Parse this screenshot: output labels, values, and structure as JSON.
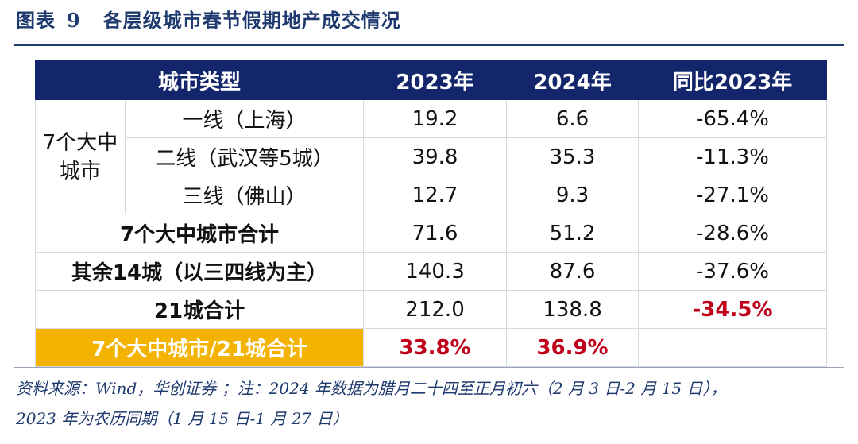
{
  "title": {
    "label": "图表",
    "number": "9",
    "text": "各层级城市春节假期地产成交情况"
  },
  "table": {
    "headers": [
      "城市类型",
      "2023年",
      "2024年",
      "同比2023年"
    ],
    "group_label": "7个大中城市",
    "group_rows": [
      {
        "name": "一线（上海）",
        "y2023": "19.2",
        "y2024": "6.6",
        "yoy": "-65.4%"
      },
      {
        "name": "二线（武汉等5城）",
        "y2023": "39.8",
        "y2024": "35.3",
        "yoy": "-11.3%"
      },
      {
        "name": "三线（佛山）",
        "y2023": "12.7",
        "y2024": "9.3",
        "yoy": "-27.1%"
      }
    ],
    "summary_rows": [
      {
        "name": "7个大中城市合计",
        "y2023": "71.6",
        "y2024": "51.2",
        "yoy": "-28.6%"
      },
      {
        "name": "其余14城（以三四线为主）",
        "y2023": "140.3",
        "y2024": "87.6",
        "yoy": "-37.6%"
      },
      {
        "name": "21城合计",
        "y2023": "212.0",
        "y2024": "138.8",
        "yoy": "-34.5%"
      }
    ],
    "share_row": {
      "name": "7个大中城市/21城合计",
      "y2023": "33.8%",
      "y2024": "36.9%",
      "yoy": ""
    }
  },
  "source": {
    "line1": "资料来源：Wind，华创证券 ；注：2024 年数据为腊月二十四至正月初六（2 月 3 日-2 月 15 日），",
    "line2": "2023 年为农历同期（1 月 15 日-1 月 27 日）"
  },
  "colors": {
    "header_bg": "#13266b",
    "accent_red": "#c0001a",
    "highlight_gold": "#f4b300"
  }
}
